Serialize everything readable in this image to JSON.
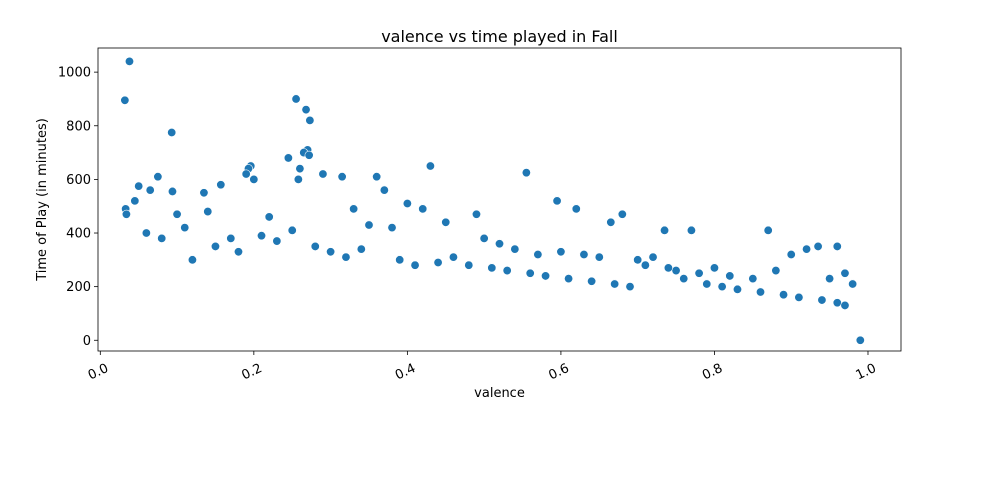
{
  "chart_data": {
    "type": "scatter",
    "title": "valence vs time played in Fall",
    "xlabel": "valence",
    "ylabel": "Time of Play (in minutes)",
    "xlim": [
      -0.003,
      1.043
    ],
    "ylim": [
      -40,
      1090
    ],
    "x_ticks": [
      {
        "value": 0.0,
        "label": "0.0"
      },
      {
        "value": 0.2,
        "label": "0.2"
      },
      {
        "value": 0.4,
        "label": "0.4"
      },
      {
        "value": 0.6,
        "label": "0.6"
      },
      {
        "value": 0.8,
        "label": "0.8"
      },
      {
        "value": 1.0,
        "label": "1.0"
      }
    ],
    "y_ticks": [
      {
        "value": 0,
        "label": "0"
      },
      {
        "value": 200,
        "label": "200"
      },
      {
        "value": 400,
        "label": "400"
      },
      {
        "value": 600,
        "label": "600"
      },
      {
        "value": 800,
        "label": "800"
      },
      {
        "value": 1000,
        "label": "1000"
      }
    ],
    "x_tick_rotation_deg": 25,
    "grid": false,
    "legend": "none",
    "marker_color": "#1f77b4",
    "marker_edge_color": "#ffffff",
    "series": [
      {
        "x": [
          0.032,
          0.033,
          0.034,
          0.038,
          0.093,
          0.255,
          0.268,
          0.273,
          0.27,
          0.265,
          0.272,
          0.26,
          0.245,
          0.258,
          0.196,
          0.193,
          0.19,
          0.2,
          0.43,
          0.555,
          0.05,
          0.075,
          0.065,
          0.094,
          0.157,
          0.135,
          0.29,
          0.315,
          0.36,
          0.37,
          0.4,
          0.42,
          0.595,
          0.62,
          0.68,
          0.665,
          0.735,
          0.77,
          0.87,
          0.935,
          0.96,
          0.99,
          0.045,
          0.1,
          0.14,
          0.17,
          0.22,
          0.33,
          0.35,
          0.38,
          0.45,
          0.49,
          0.5,
          0.52,
          0.54,
          0.57,
          0.6,
          0.63,
          0.65,
          0.7,
          0.72,
          0.75,
          0.78,
          0.8,
          0.82,
          0.85,
          0.88,
          0.9,
          0.92,
          0.95,
          0.97,
          0.98,
          0.06,
          0.08,
          0.11,
          0.12,
          0.15,
          0.18,
          0.21,
          0.23,
          0.25,
          0.28,
          0.3,
          0.32,
          0.34,
          0.39,
          0.41,
          0.44,
          0.46,
          0.48,
          0.51,
          0.53,
          0.56,
          0.58,
          0.61,
          0.64,
          0.67,
          0.69,
          0.71,
          0.74,
          0.76,
          0.79,
          0.81,
          0.83,
          0.86,
          0.89,
          0.91,
          0.94,
          0.96,
          0.97
        ],
        "y": [
          895,
          490,
          470,
          1040,
          775,
          900,
          860,
          820,
          710,
          700,
          690,
          640,
          680,
          600,
          650,
          640,
          620,
          600,
          650,
          625,
          575,
          610,
          560,
          555,
          580,
          550,
          620,
          610,
          610,
          560,
          510,
          490,
          520,
          490,
          470,
          440,
          410,
          410,
          410,
          350,
          350,
          0,
          520,
          470,
          480,
          380,
          460,
          490,
          430,
          420,
          440,
          470,
          380,
          360,
          340,
          320,
          330,
          320,
          310,
          300,
          310,
          260,
          250,
          270,
          240,
          230,
          260,
          320,
          340,
          230,
          250,
          210,
          400,
          380,
          420,
          300,
          350,
          330,
          390,
          370,
          410,
          350,
          330,
          310,
          340,
          300,
          280,
          290,
          310,
          280,
          270,
          260,
          250,
          240,
          230,
          220,
          210,
          200,
          280,
          270,
          230,
          210,
          200,
          190,
          180,
          170,
          160,
          150,
          140,
          130
        ]
      }
    ]
  }
}
